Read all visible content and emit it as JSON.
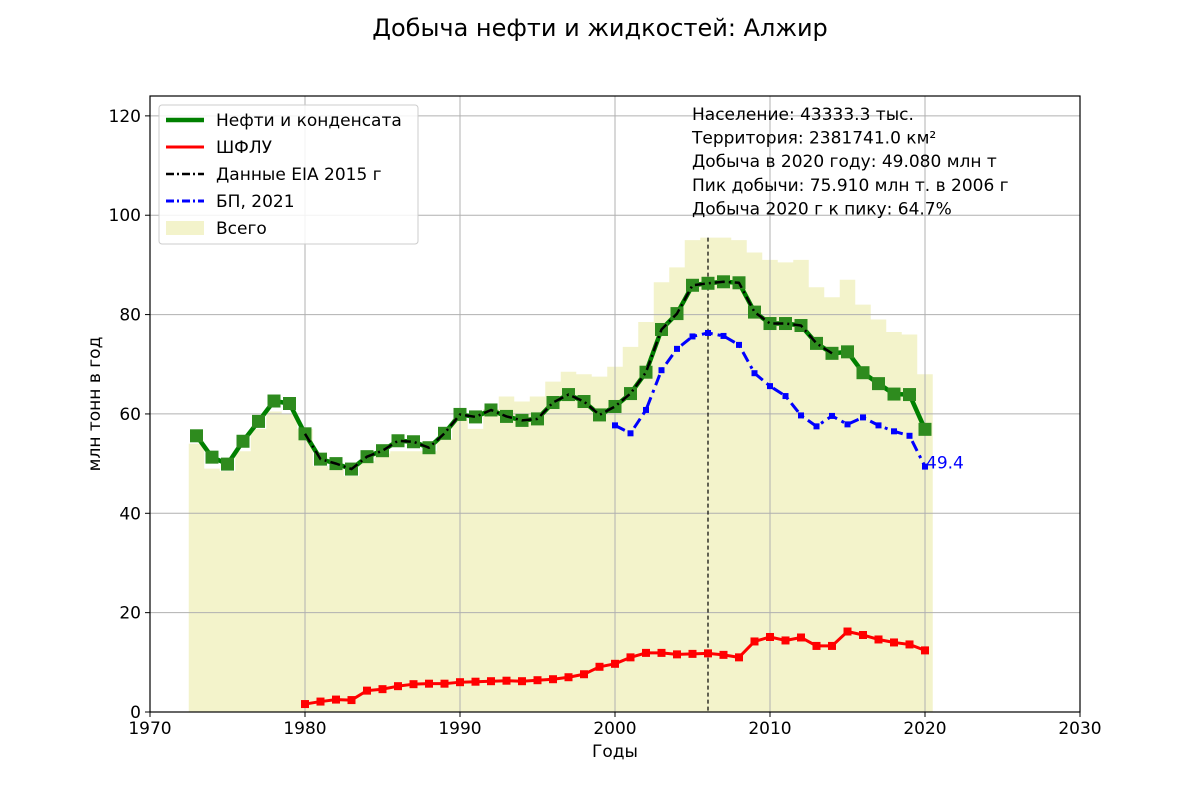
{
  "chart_data": {
    "type": "line",
    "title": "Добыча нефти и жидкостей: Алжир",
    "xlabel": "Годы",
    "ylabel": "млн тонн в год",
    "xlim": [
      1970,
      2030
    ],
    "ylim": [
      0,
      124
    ],
    "x_ticks": [
      "1970",
      "1980",
      "1990",
      "2000",
      "2010",
      "2020",
      "2030"
    ],
    "y_ticks": [
      "0",
      "20",
      "40",
      "60",
      "80",
      "100",
      "120"
    ],
    "grid": true,
    "legend_position": "top-left",
    "info_lines": [
      "Население: 43333.3 тыс.",
      "Территория: 2381741.0 км²",
      "Добыча в 2020 году: 49.080 млн т",
      "Пик добычи: 75.910 млн т. в 2006 г",
      "Добыча 2020 г к пику: 64.7%"
    ],
    "vline_x": 2006,
    "end_annotation": "49.4",
    "series": [
      {
        "name": "Нефти и конденсата",
        "color": "#008000",
        "x": [
          1973,
          1974,
          1975,
          1976,
          1977,
          1978,
          1979,
          1980,
          1981,
          1982,
          1983,
          1984,
          1985,
          1986,
          1987,
          1988,
          1989,
          1990,
          1991,
          1992,
          1993,
          1994,
          1995,
          1996,
          1997,
          1998,
          1999,
          2000,
          2001,
          2002,
          2003,
          2004,
          2005,
          2006,
          2007,
          2008,
          2009,
          2010,
          2011,
          2012,
          2013,
          2014,
          2015,
          2016,
          2017,
          2018,
          2019,
          2020
        ],
        "values": [
          55.6,
          51.3,
          49.9,
          54.5,
          58.5,
          62.6,
          62.1,
          56.0,
          50.9,
          50.0,
          48.9,
          51.4,
          52.6,
          54.6,
          54.4,
          53.2,
          56.1,
          59.9,
          59.4,
          60.8,
          59.5,
          58.7,
          59.0,
          62.3,
          63.9,
          62.5,
          59.8,
          61.5,
          64.1,
          68.4,
          77.0,
          80.2,
          85.9,
          86.3,
          86.6,
          86.4,
          80.5,
          78.2,
          78.2,
          77.8,
          74.2,
          72.2,
          72.5,
          68.3,
          66.1,
          64.0,
          63.9,
          56.9
        ]
      },
      {
        "name": "ШФЛУ",
        "color": "#ff0000",
        "x": [
          1980,
          1981,
          1982,
          1983,
          1984,
          1985,
          1986,
          1987,
          1988,
          1989,
          1990,
          1991,
          1992,
          1993,
          1994,
          1995,
          1996,
          1997,
          1998,
          1999,
          2000,
          2001,
          2002,
          2003,
          2004,
          2005,
          2006,
          2007,
          2008,
          2009,
          2010,
          2011,
          2012,
          2013,
          2014,
          2015,
          2016,
          2017,
          2018,
          2019,
          2020
        ],
        "values": [
          1.6,
          2.1,
          2.5,
          2.4,
          4.3,
          4.6,
          5.2,
          5.6,
          5.7,
          5.7,
          6.0,
          6.1,
          6.2,
          6.3,
          6.2,
          6.4,
          6.6,
          7.0,
          7.6,
          9.1,
          9.7,
          11.0,
          11.9,
          11.9,
          11.6,
          11.7,
          11.8,
          11.5,
          11.0,
          14.2,
          15.1,
          14.4,
          15.0,
          13.3,
          13.3,
          16.2,
          15.5,
          14.6,
          14.0,
          13.6,
          12.4
        ]
      },
      {
        "name": "Данные EIA 2015 г",
        "color": "#000000",
        "x": [
          1980,
          1981,
          1982,
          1983,
          1984,
          1985,
          1986,
          1987,
          1988,
          1989,
          1990,
          1991,
          1992,
          1993,
          1994,
          1995,
          1996,
          1997,
          1998,
          1999,
          2000,
          2001,
          2002,
          2003,
          2004,
          2005,
          2006,
          2007,
          2008,
          2009,
          2010,
          2011,
          2012,
          2013,
          2014
        ],
        "values": [
          56.0,
          50.9,
          50.0,
          48.9,
          51.4,
          52.6,
          54.6,
          54.4,
          53.2,
          56.1,
          59.9,
          59.4,
          60.8,
          59.5,
          58.7,
          59.0,
          62.3,
          63.9,
          62.5,
          59.8,
          61.5,
          64.1,
          68.4,
          77.0,
          80.2,
          85.9,
          86.3,
          86.6,
          86.4,
          80.5,
          78.2,
          78.2,
          77.8,
          74.2,
          72.2
        ]
      },
      {
        "name": "БП, 2021",
        "color": "#0000ff",
        "x": [
          2000,
          2001,
          2002,
          2003,
          2004,
          2005,
          2006,
          2007,
          2008,
          2009,
          2010,
          2011,
          2012,
          2013,
          2014,
          2015,
          2016,
          2017,
          2018,
          2019,
          2020
        ],
        "values": [
          57.7,
          56.1,
          60.8,
          68.8,
          73.1,
          75.6,
          76.3,
          75.7,
          73.9,
          68.2,
          65.6,
          63.6,
          59.7,
          57.5,
          59.6,
          57.9,
          59.3,
          57.7,
          56.5,
          55.6,
          49.4
        ]
      },
      {
        "name": "Всего",
        "color": "#eeeebb",
        "x": [
          1973,
          1974,
          1975,
          1976,
          1977,
          1978,
          1979,
          1980,
          1981,
          1982,
          1983,
          1984,
          1985,
          1986,
          1987,
          1988,
          1989,
          1990,
          1991,
          1992,
          1993,
          1994,
          1995,
          1996,
          1997,
          1998,
          1999,
          2000,
          2001,
          2002,
          2003,
          2004,
          2005,
          2006,
          2007,
          2008,
          2009,
          2010,
          2011,
          2012,
          2013,
          2014,
          2015,
          2016,
          2017,
          2018,
          2019,
          2020
        ],
        "values": [
          54.0,
          49.0,
          48.5,
          52.5,
          57.0,
          60.5,
          60.0,
          57.0,
          49.5,
          49.0,
          47.5,
          50.5,
          52.0,
          52.5,
          52.5,
          52.5,
          55.0,
          59.0,
          57.0,
          61.0,
          63.5,
          62.5,
          63.5,
          66.5,
          68.5,
          68.0,
          67.5,
          69.5,
          73.5,
          78.5,
          86.5,
          89.5,
          95.0,
          95.5,
          95.5,
          95.0,
          92.5,
          91.0,
          90.5,
          91.0,
          85.5,
          83.5,
          87.0,
          82.0,
          79.0,
          76.5,
          76.0,
          68.0
        ]
      }
    ]
  }
}
